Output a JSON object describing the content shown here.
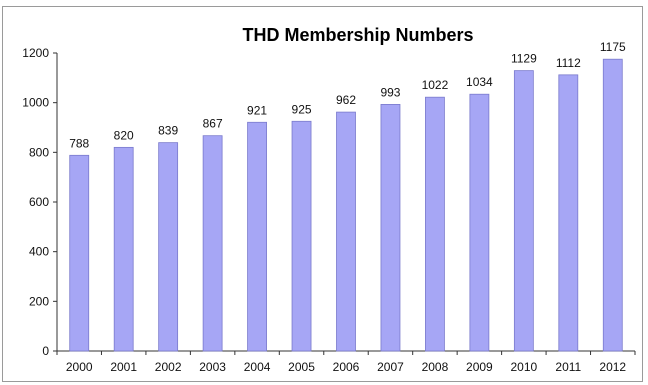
{
  "chart_data": {
    "type": "bar",
    "title": "THD Membership Numbers",
    "xlabel": "",
    "ylabel": "",
    "categories": [
      "2000",
      "2001",
      "2002",
      "2003",
      "2004",
      "2005",
      "2006",
      "2007",
      "2008",
      "2009",
      "2010",
      "2011",
      "2012"
    ],
    "values": [
      788,
      820,
      839,
      867,
      921,
      925,
      962,
      993,
      1022,
      1034,
      1129,
      1112,
      1175
    ],
    "ylim": [
      0,
      1200
    ],
    "yticks": [
      0,
      200,
      400,
      600,
      800,
      1000,
      1200
    ],
    "grid": false,
    "legend": "none",
    "bar_color": "#a6a6f5",
    "bar_stroke": "#7a7acc"
  }
}
